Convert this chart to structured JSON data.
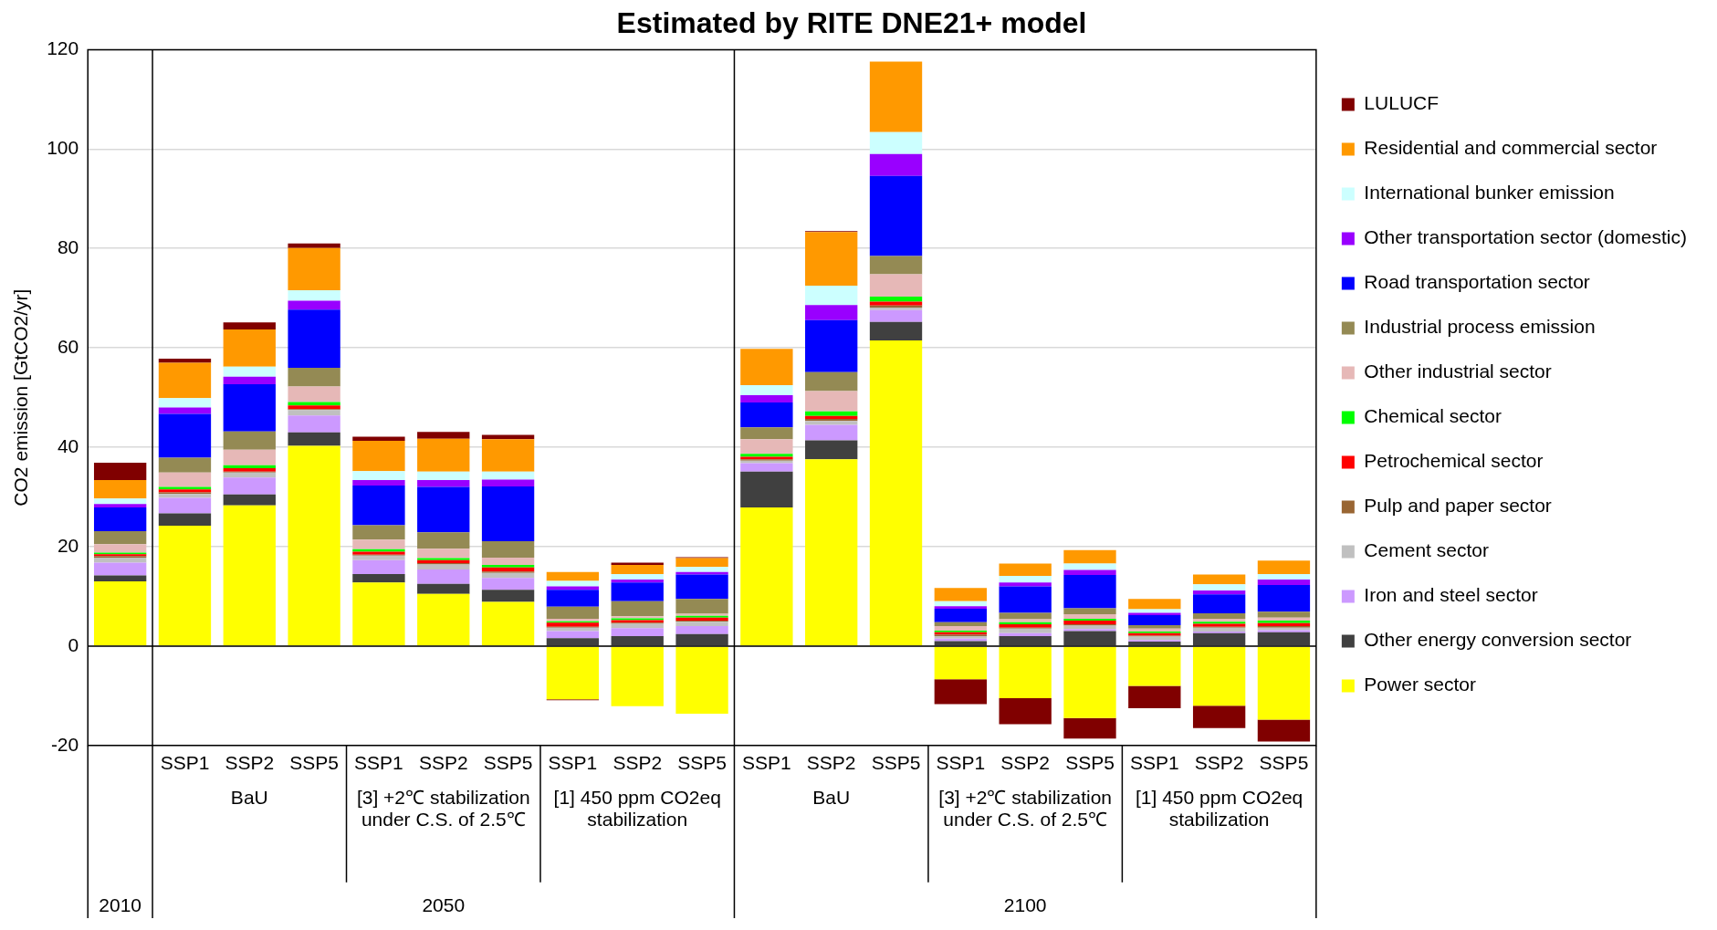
{
  "chart_data": {
    "type": "bar",
    "stacked": true,
    "title": "Estimated by RITE DNE21+ model",
    "ylabel": "CO2 emission [GtCO2/yr]",
    "categories": [
      null,
      "SSP1",
      "SSP2",
      "SSP5",
      "SSP1",
      "SSP2",
      "SSP5",
      "SSP1",
      "SSP2",
      "SSP5",
      "SSP1",
      "SSP2",
      "SSP5",
      "SSP1",
      "SSP2",
      "SSP5",
      "SSP1",
      "SSP2",
      "SSP5"
    ],
    "ylim": [
      -20,
      120
    ],
    "yticks": [
      -20,
      0,
      20,
      40,
      60,
      80,
      100,
      120
    ],
    "grid": "y",
    "legend": "right",
    "annotations": [
      "BaU",
      "[3] +2℃ stabilization under C.S. of 2.5℃",
      "[1] 450 ppm CO2eq stabilization",
      "BaU",
      "[3] +2℃ stabilization under C.S. of 2.5℃",
      "[1] 450 ppm CO2eq stabilization",
      "2010",
      "2050",
      "2100"
    ],
    "series": [
      {
        "name": "Power sector",
        "color": "#ffff00",
        "values": [
          13.0,
          24.2,
          28.3,
          40.3,
          12.8,
          10.5,
          8.9,
          -10.7,
          -12.1,
          -13.6,
          27.9,
          37.6,
          61.5,
          -6.7,
          -10.5,
          -14.5,
          -8.0,
          -12.0,
          -14.8
        ]
      },
      {
        "name": "Other energy conversion sector",
        "color": "#404040",
        "values": [
          1.2,
          2.5,
          2.2,
          2.7,
          1.7,
          2.0,
          2.4,
          1.6,
          2.0,
          2.4,
          7.2,
          3.8,
          3.7,
          1.0,
          2.0,
          3.0,
          0.9,
          2.6,
          2.8
        ]
      },
      {
        "name": "Iron and steel sector",
        "color": "#cc99ff",
        "values": [
          2.6,
          3.1,
          3.4,
          3.4,
          2.8,
          2.9,
          2.4,
          1.4,
          1.6,
          1.6,
          1.7,
          3.1,
          2.4,
          0.5,
          0.6,
          0.4,
          0.3,
          0.3,
          0.4
        ]
      },
      {
        "name": "Cement sector",
        "color": "#c0c0c0",
        "values": [
          1.0,
          0.8,
          1.0,
          1.1,
          0.9,
          1.0,
          1.0,
          0.7,
          0.9,
          0.9,
          0.5,
          0.8,
          0.5,
          0.5,
          0.9,
          0.7,
          0.7,
          0.8,
          0.5
        ]
      },
      {
        "name": "Pulp and paper sector",
        "color": "#996633",
        "values": [
          0.3,
          0.3,
          0.2,
          0.2,
          0.2,
          0.3,
          0.3,
          0.2,
          0.2,
          0.2,
          0.3,
          0.4,
          0.4,
          0.3,
          0.2,
          0.3,
          0.2,
          0.2,
          0.3
        ]
      },
      {
        "name": "Petrochemical sector",
        "color": "#ff0000",
        "values": [
          0.4,
          0.6,
          0.7,
          0.7,
          0.6,
          0.6,
          0.8,
          0.8,
          0.5,
          0.6,
          0.5,
          0.6,
          0.8,
          0.5,
          0.7,
          0.7,
          0.5,
          0.6,
          0.6
        ]
      },
      {
        "name": "Chemical sector",
        "color": "#00ff00",
        "values": [
          0.3,
          0.5,
          0.6,
          0.7,
          0.5,
          0.4,
          0.5,
          0.3,
          0.4,
          0.4,
          0.6,
          0.9,
          1.0,
          0.3,
          0.4,
          0.4,
          0.3,
          0.4,
          0.5
        ]
      },
      {
        "name": "Other industrial sector",
        "color": "#e6b8b7",
        "values": [
          1.7,
          2.9,
          3.1,
          3.1,
          1.9,
          1.9,
          1.5,
          0.5,
          0.4,
          0.4,
          2.9,
          4.1,
          4.5,
          0.9,
          0.6,
          0.9,
          0.6,
          0.6,
          0.6
        ]
      },
      {
        "name": "Industrial process emission",
        "color": "#948a54",
        "values": [
          2.6,
          3.0,
          3.7,
          3.8,
          2.9,
          3.3,
          3.3,
          2.4,
          3.0,
          3.0,
          2.4,
          3.8,
          3.7,
          0.8,
          1.3,
          1.2,
          0.7,
          1.1,
          1.2
        ]
      },
      {
        "name": "Road transportation sector",
        "color": "#0000ff",
        "values": [
          4.8,
          8.8,
          9.5,
          11.7,
          8.0,
          9.1,
          11.0,
          3.4,
          3.8,
          4.9,
          5.0,
          10.5,
          16.1,
          2.7,
          5.3,
          6.7,
          2.0,
          3.8,
          5.4
        ]
      },
      {
        "name": "Other transportation sector (domestic)",
        "color": "#9900ff",
        "values": [
          0.7,
          1.3,
          1.5,
          1.8,
          1.1,
          1.4,
          1.4,
          0.7,
          0.6,
          0.5,
          1.5,
          3.0,
          4.4,
          0.5,
          0.8,
          1.0,
          0.5,
          0.8,
          1.1
        ]
      },
      {
        "name": "International bunker emission",
        "color": "#ccffff",
        "values": [
          1.1,
          1.9,
          2.0,
          2.1,
          1.8,
          1.7,
          1.6,
          1.1,
          1.1,
          1.0,
          2.0,
          3.9,
          4.4,
          1.0,
          1.3,
          1.3,
          0.7,
          1.2,
          1.1
        ]
      },
      {
        "name": "Residential and commercial sector",
        "color": "#ff9900",
        "values": [
          3.7,
          7.1,
          7.5,
          8.5,
          6.1,
          6.6,
          6.5,
          1.8,
          1.8,
          1.8,
          7.3,
          10.8,
          14.2,
          2.7,
          2.5,
          2.7,
          2.1,
          2.0,
          2.7
        ]
      },
      {
        "name": "LULUCF",
        "color": "#800000",
        "values": [
          3.5,
          0.8,
          1.4,
          0.9,
          0.8,
          1.4,
          0.9,
          -0.2,
          0.5,
          0.2,
          0,
          0.2,
          0,
          -5.0,
          -5.2,
          -4.1,
          -4.5,
          -4.5,
          -4.4
        ]
      }
    ]
  }
}
